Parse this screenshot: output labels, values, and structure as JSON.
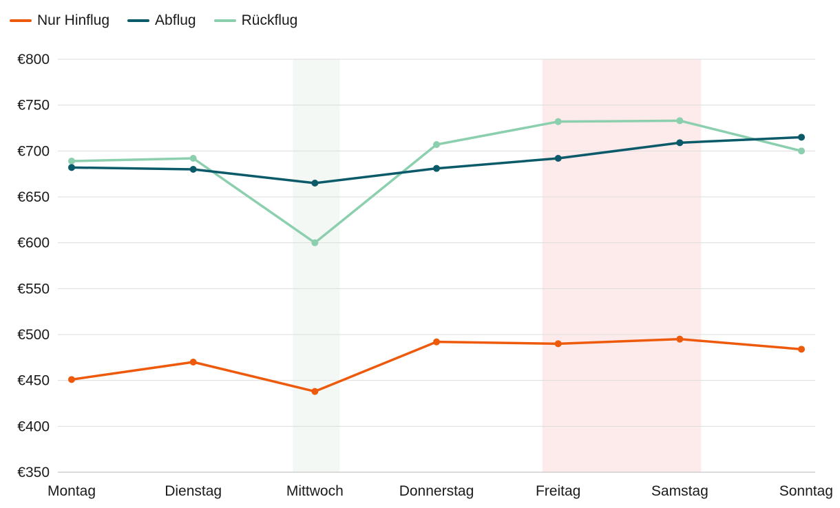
{
  "chart_data": {
    "type": "line",
    "title": "",
    "xlabel": "",
    "ylabel": "",
    "categories": [
      "Montag",
      "Dienstag",
      "Mittwoch",
      "Donnerstag",
      "Freitag",
      "Samstag",
      "Sonntag"
    ],
    "ylim": [
      350,
      800
    ],
    "yticks": [
      350,
      400,
      450,
      500,
      550,
      600,
      650,
      700,
      750,
      800
    ],
    "ytick_labels": [
      "€350",
      "€400",
      "€450",
      "€500",
      "€550",
      "€600",
      "€650",
      "€700",
      "€750",
      "€800"
    ],
    "grid": "horizontal",
    "legend_position": "top-left",
    "series": [
      {
        "name": "Nur Hinflug",
        "color": "#ee5a0c",
        "values": [
          451,
          470,
          438,
          492,
          490,
          495,
          484
        ]
      },
      {
        "name": "Abflug",
        "color": "#0b5a6a",
        "values": [
          682,
          680,
          665,
          681,
          692,
          709,
          715
        ]
      },
      {
        "name": "Rückflug",
        "color": "#8ccfae",
        "values": [
          689,
          692,
          600,
          707,
          732,
          733,
          700
        ]
      }
    ],
    "highlight_bands": [
      {
        "category": "Mittwoch",
        "color": "#f3f8f5"
      },
      {
        "categories": [
          "Freitag",
          "Samstag"
        ],
        "color": "#fdeaea"
      }
    ]
  }
}
